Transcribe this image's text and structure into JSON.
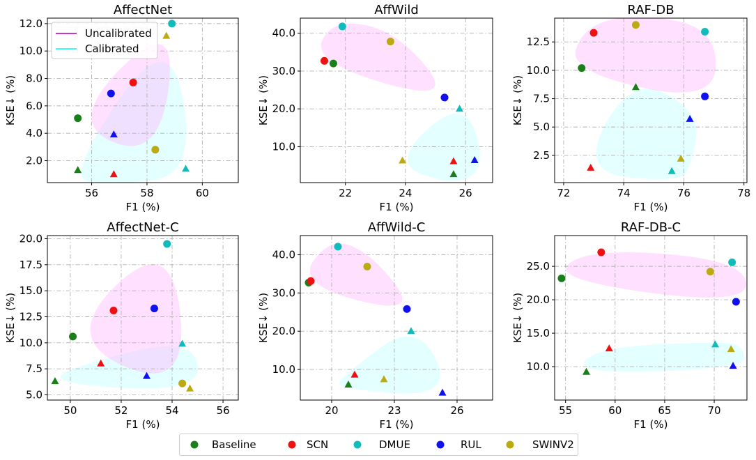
{
  "figure_legend": {
    "items": [
      {
        "label": "Baseline",
        "color": "#1a7f1a"
      },
      {
        "label": "SCN",
        "color": "#ee1111"
      },
      {
        "label": "DMUE",
        "color": "#11bbbb"
      },
      {
        "label": "RUL",
        "color": "#1111ee"
      },
      {
        "label": "SWINV2",
        "color": "#bbaa11"
      }
    ]
  },
  "inset_legend": {
    "items": [
      {
        "label": "Uncalibrated",
        "color": "#cc33cc"
      },
      {
        "label": "Calibrated",
        "color": "#33ffff"
      }
    ]
  },
  "chart_data": [
    {
      "type": "scatter",
      "title": "AffectNet",
      "xlabel": "F1 (%)",
      "ylabel": "KSE↓ (%)",
      "xlim": [
        54.4,
        61.3
      ],
      "ylim": [
        0.4,
        12.4
      ],
      "xticks": [
        56,
        58,
        60
      ],
      "yticks": [
        2,
        4,
        6,
        8,
        10,
        12
      ],
      "ytick_fmt": 1,
      "grid": true,
      "legend": "top-left",
      "uncalibrated": [
        {
          "method": "Baseline",
          "x": 55.5,
          "y": 5.1
        },
        {
          "method": "SCN",
          "x": 57.5,
          "y": 7.7
        },
        {
          "method": "DMUE",
          "x": 58.9,
          "y": 12.0
        },
        {
          "method": "RUL",
          "x": 56.7,
          "y": 6.9
        },
        {
          "method": "SWINV2",
          "x": 58.3,
          "y": 2.8
        }
      ],
      "calibrated": [
        {
          "method": "Baseline",
          "x": 55.5,
          "y": 1.3
        },
        {
          "method": "SCN",
          "x": 56.8,
          "y": 1.0
        },
        {
          "method": "DMUE",
          "x": 59.4,
          "y": 1.4
        },
        {
          "method": "RUL",
          "x": 56.8,
          "y": 3.9
        },
        {
          "method": "SWINV2",
          "x": 58.7,
          "y": 11.1
        }
      ]
    },
    {
      "type": "scatter",
      "title": "AffWild",
      "xlabel": "F1 (%)",
      "ylabel": "KSE↓ (%)",
      "xlim": [
        20.5,
        26.9
      ],
      "ylim": [
        0.5,
        44
      ],
      "xticks": [
        22,
        24,
        26
      ],
      "yticks": [
        10,
        20,
        30,
        40
      ],
      "ytick_fmt": 1,
      "grid": true,
      "uncalibrated": [
        {
          "method": "Baseline",
          "x": 21.6,
          "y": 32.0
        },
        {
          "method": "SCN",
          "x": 21.3,
          "y": 32.7
        },
        {
          "method": "DMUE",
          "x": 21.9,
          "y": 41.8
        },
        {
          "method": "RUL",
          "x": 25.3,
          "y": 23.0
        },
        {
          "method": "SWINV2",
          "x": 23.5,
          "y": 37.8
        }
      ],
      "calibrated": [
        {
          "method": "Baseline",
          "x": 25.6,
          "y": 2.7
        },
        {
          "method": "SCN",
          "x": 25.6,
          "y": 6.1
        },
        {
          "method": "DMUE",
          "x": 25.8,
          "y": 20.0
        },
        {
          "method": "RUL",
          "x": 26.3,
          "y": 6.4
        },
        {
          "method": "SWINV2",
          "x": 23.9,
          "y": 6.3
        }
      ]
    },
    {
      "type": "scatter",
      "title": "RAF-DB",
      "xlabel": "F1 (%)",
      "ylabel": "KSE↓ (%)",
      "xlim": [
        71.7,
        78.1
      ],
      "ylim": [
        0.1,
        14.6
      ],
      "xticks": [
        72,
        74,
        76,
        78
      ],
      "yticks": [
        2.5,
        5.0,
        7.5,
        10.0,
        12.5
      ],
      "ytick_fmt": 1,
      "grid": true,
      "uncalibrated": [
        {
          "method": "Baseline",
          "x": 72.6,
          "y": 10.2
        },
        {
          "method": "SCN",
          "x": 73.0,
          "y": 13.3
        },
        {
          "method": "DMUE",
          "x": 76.7,
          "y": 13.4
        },
        {
          "method": "RUL",
          "x": 76.7,
          "y": 7.7
        },
        {
          "method": "SWINV2",
          "x": 74.4,
          "y": 14.0
        }
      ],
      "calibrated": [
        {
          "method": "Baseline",
          "x": 74.4,
          "y": 8.5
        },
        {
          "method": "SCN",
          "x": 72.9,
          "y": 1.4
        },
        {
          "method": "DMUE",
          "x": 75.6,
          "y": 1.1
        },
        {
          "method": "RUL",
          "x": 76.2,
          "y": 5.7
        },
        {
          "method": "SWINV2",
          "x": 75.9,
          "y": 2.2
        }
      ]
    },
    {
      "type": "scatter",
      "title": "AffectNet-C",
      "xlabel": "F1 (%)",
      "ylabel": "KSE↓ (%)",
      "xlim": [
        49.1,
        56.6
      ],
      "ylim": [
        4.5,
        20.3
      ],
      "xticks": [
        50,
        52,
        54,
        56
      ],
      "yticks": [
        5.0,
        7.5,
        10.0,
        12.5,
        15.0,
        17.5,
        20.0
      ],
      "ytick_fmt": 1,
      "grid": true,
      "uncalibrated": [
        {
          "method": "Baseline",
          "x": 50.1,
          "y": 10.6
        },
        {
          "method": "SCN",
          "x": 51.7,
          "y": 13.1
        },
        {
          "method": "DMUE",
          "x": 53.8,
          "y": 19.5
        },
        {
          "method": "RUL",
          "x": 53.3,
          "y": 13.3
        },
        {
          "method": "SWINV2",
          "x": 54.4,
          "y": 6.1
        }
      ],
      "calibrated": [
        {
          "method": "Baseline",
          "x": 49.4,
          "y": 6.3
        },
        {
          "method": "SCN",
          "x": 51.2,
          "y": 8.0
        },
        {
          "method": "DMUE",
          "x": 54.4,
          "y": 9.9
        },
        {
          "method": "RUL",
          "x": 53.0,
          "y": 6.8
        },
        {
          "method": "SWINV2",
          "x": 54.7,
          "y": 5.6
        }
      ]
    },
    {
      "type": "scatter",
      "title": "AffWild-C",
      "xlabel": "F1 (%)",
      "ylabel": "KSE↓ (%)",
      "xlim": [
        18.5,
        27.7
      ],
      "ylim": [
        2,
        45
      ],
      "xticks": [
        20,
        23,
        26
      ],
      "yticks": [
        10,
        20,
        30,
        40
      ],
      "ytick_fmt": 1,
      "grid": true,
      "uncalibrated": [
        {
          "method": "Baseline",
          "x": 18.9,
          "y": 32.7
        },
        {
          "method": "SCN",
          "x": 19.0,
          "y": 33.1
        },
        {
          "method": "DMUE",
          "x": 20.3,
          "y": 42.1
        },
        {
          "method": "RUL",
          "x": 23.6,
          "y": 25.8
        },
        {
          "method": "SWINV2",
          "x": 21.7,
          "y": 36.9
        }
      ],
      "calibrated": [
        {
          "method": "Baseline",
          "x": 20.8,
          "y": 6.0
        },
        {
          "method": "SCN",
          "x": 21.1,
          "y": 8.6
        },
        {
          "method": "DMUE",
          "x": 23.8,
          "y": 20.0
        },
        {
          "method": "RUL",
          "x": 25.3,
          "y": 3.9
        },
        {
          "method": "SWINV2",
          "x": 22.5,
          "y": 7.4
        }
      ]
    },
    {
      "type": "scatter",
      "title": "RAF-DB-C",
      "xlabel": "F1 (%)",
      "ylabel": "KSE↓ (%)",
      "xlim": [
        53.9,
        73.3
      ],
      "ylim": [
        5,
        29.6
      ],
      "xticks": [
        55,
        60,
        65,
        70
      ],
      "yticks": [
        10.0,
        15.0,
        20.0,
        25.0
      ],
      "ytick_fmt": 1,
      "grid": true,
      "uncalibrated": [
        {
          "method": "Baseline",
          "x": 54.6,
          "y": 23.2
        },
        {
          "method": "SCN",
          "x": 58.6,
          "y": 27.1
        },
        {
          "method": "DMUE",
          "x": 71.8,
          "y": 25.6
        },
        {
          "method": "RUL",
          "x": 72.2,
          "y": 19.7
        },
        {
          "method": "SWINV2",
          "x": 69.6,
          "y": 24.2
        }
      ],
      "calibrated": [
        {
          "method": "Baseline",
          "x": 57.1,
          "y": 9.2
        },
        {
          "method": "SCN",
          "x": 59.4,
          "y": 12.7
        },
        {
          "method": "DMUE",
          "x": 70.1,
          "y": 13.3
        },
        {
          "method": "RUL",
          "x": 71.9,
          "y": 10.1
        },
        {
          "method": "SWINV2",
          "x": 71.7,
          "y": 12.6
        }
      ]
    }
  ]
}
